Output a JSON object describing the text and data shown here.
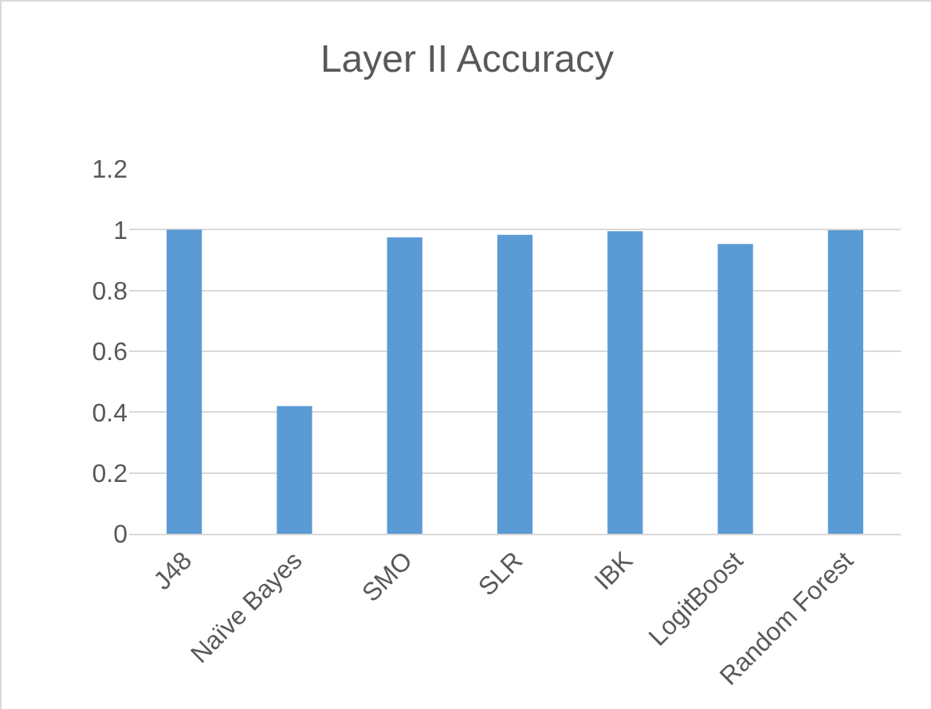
{
  "chart_data": {
    "type": "bar",
    "title": "Layer II Accuracy",
    "categories": [
      "J48",
      "Naïve Bayes",
      "SMO",
      "SLR",
      "IBK",
      "LogitBoost",
      "Random Forest"
    ],
    "values": [
      1.0,
      0.42,
      0.975,
      0.983,
      0.995,
      0.953,
      0.998
    ],
    "color": "#5b9bd5",
    "ylim": [
      0,
      1.2
    ],
    "yticks": [
      0,
      0.2,
      0.4,
      0.6,
      0.8,
      1,
      1.2
    ],
    "grid": "y"
  }
}
